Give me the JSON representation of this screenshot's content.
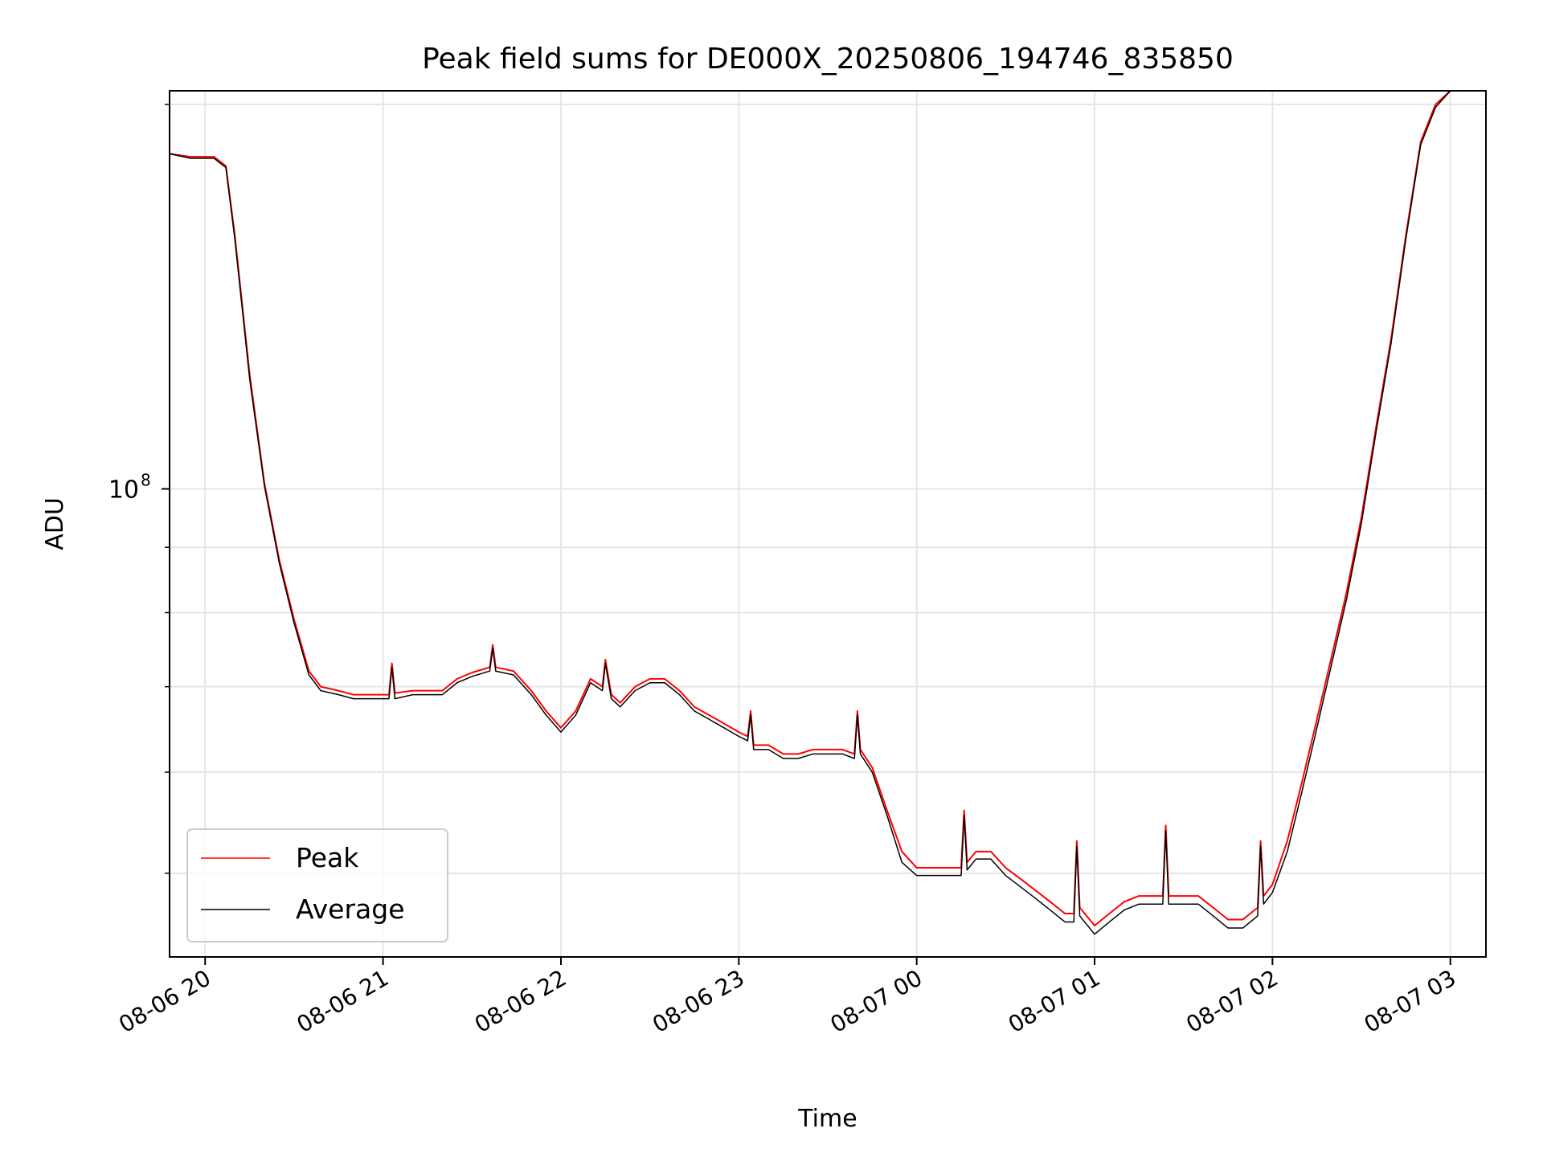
{
  "chart_data": {
    "type": "line",
    "title": "Peak field sums for DE000X_20250806_194746_835850",
    "xlabel": "Time",
    "ylabel": "ADU",
    "yscale": "log",
    "grid": true,
    "legend_placement": "bottom-left",
    "xlim": [
      "2025-08-06 19:48",
      "2025-08-07 03:12"
    ],
    "ylim": [
      43000000,
      205000000
    ],
    "x_ticks": [
      {
        "t": "2025-08-06 20:00",
        "label": "08-06 20"
      },
      {
        "t": "2025-08-06 21:00",
        "label": "08-06 21"
      },
      {
        "t": "2025-08-06 22:00",
        "label": "08-06 22"
      },
      {
        "t": "2025-08-06 23:00",
        "label": "08-06 23"
      },
      {
        "t": "2025-08-07 00:00",
        "label": "08-07 00"
      },
      {
        "t": "2025-08-07 01:00",
        "label": "08-07 01"
      },
      {
        "t": "2025-08-07 02:00",
        "label": "08-07 02"
      },
      {
        "t": "2025-08-07 03:00",
        "label": "08-07 03"
      }
    ],
    "y_major_ticks": [
      {
        "value": 100000000,
        "label_base": "10",
        "label_exp": "8"
      }
    ],
    "y_minor_ticks": [
      50000000,
      60000000,
      70000000,
      80000000,
      90000000,
      200000000
    ],
    "series": [
      {
        "name": "Peak",
        "color": "#ff0000",
        "x": [
          "2025-08-06 19:48",
          "2025-08-06 19:55",
          "2025-08-06 20:03",
          "2025-08-06 20:07",
          "2025-08-06 20:10",
          "2025-08-06 20:15",
          "2025-08-06 20:20",
          "2025-08-06 20:25",
          "2025-08-06 20:30",
          "2025-08-06 20:35",
          "2025-08-06 20:39",
          "2025-08-06 20:45",
          "2025-08-06 20:50",
          "2025-08-06 20:55",
          "2025-08-06 21:02",
          "2025-08-06 21:03",
          "2025-08-06 21:04",
          "2025-08-06 21:10",
          "2025-08-06 21:20",
          "2025-08-06 21:25",
          "2025-08-06 21:30",
          "2025-08-06 21:36",
          "2025-08-06 21:37",
          "2025-08-06 21:38",
          "2025-08-06 21:44",
          "2025-08-06 21:50",
          "2025-08-06 21:55",
          "2025-08-06 22:00",
          "2025-08-06 22:05",
          "2025-08-06 22:10",
          "2025-08-06 22:14",
          "2025-08-06 22:15",
          "2025-08-06 22:17",
          "2025-08-06 22:20",
          "2025-08-06 22:25",
          "2025-08-06 22:30",
          "2025-08-06 22:35",
          "2025-08-06 22:40",
          "2025-08-06 22:45",
          "2025-08-06 22:50",
          "2025-08-06 22:55",
          "2025-08-06 23:00",
          "2025-08-06 23:03",
          "2025-08-06 23:04",
          "2025-08-06 23:05",
          "2025-08-06 23:10",
          "2025-08-06 23:15",
          "2025-08-06 23:20",
          "2025-08-06 23:25",
          "2025-08-06 23:30",
          "2025-08-06 23:35",
          "2025-08-06 23:39",
          "2025-08-06 23:40",
          "2025-08-06 23:41",
          "2025-08-06 23:45",
          "2025-08-06 23:50",
          "2025-08-06 23:55",
          "2025-08-07 00:00",
          "2025-08-07 00:05",
          "2025-08-07 00:10",
          "2025-08-07 00:15",
          "2025-08-07 00:16",
          "2025-08-07 00:17",
          "2025-08-07 00:20",
          "2025-08-07 00:25",
          "2025-08-07 00:30",
          "2025-08-07 00:35",
          "2025-08-07 00:40",
          "2025-08-07 00:45",
          "2025-08-07 00:50",
          "2025-08-07 00:53",
          "2025-08-07 00:54",
          "2025-08-07 00:55",
          "2025-08-07 01:00",
          "2025-08-07 01:05",
          "2025-08-07 01:10",
          "2025-08-07 01:15",
          "2025-08-07 01:20",
          "2025-08-07 01:23",
          "2025-08-07 01:24",
          "2025-08-07 01:25",
          "2025-08-07 01:30",
          "2025-08-07 01:35",
          "2025-08-07 01:40",
          "2025-08-07 01:45",
          "2025-08-07 01:50",
          "2025-08-07 01:55",
          "2025-08-07 01:56",
          "2025-08-07 01:57",
          "2025-08-07 02:00",
          "2025-08-07 02:05",
          "2025-08-07 02:10",
          "2025-08-07 02:15",
          "2025-08-07 02:20",
          "2025-08-07 02:25",
          "2025-08-07 02:30",
          "2025-08-07 02:35",
          "2025-08-07 02:40",
          "2025-08-07 02:45",
          "2025-08-07 02:50",
          "2025-08-07 02:55",
          "2025-08-07 03:00",
          "2025-08-07 03:02"
        ],
        "values": [
          183000000,
          182000000,
          182000000,
          179000000,
          158000000,
          123000000,
          101000000,
          88000000,
          79000000,
          72000000,
          70000000,
          69500000,
          69000000,
          69000000,
          69000000,
          73000000,
          69200000,
          69500000,
          69500000,
          71000000,
          71800000,
          72500000,
          75500000,
          72500000,
          72000000,
          69500000,
          67000000,
          65000000,
          67000000,
          71000000,
          70000000,
          73500000,
          69000000,
          68000000,
          70000000,
          71000000,
          71000000,
          69500000,
          67500000,
          66500000,
          65500000,
          64500000,
          64000000,
          67000000,
          63000000,
          63000000,
          62000000,
          62000000,
          62500000,
          62500000,
          62500000,
          62000000,
          67000000,
          62500000,
          60500000,
          56000000,
          52000000,
          50500000,
          50500000,
          50500000,
          50500000,
          56000000,
          51000000,
          52000000,
          52000000,
          50500000,
          49500000,
          48500000,
          47500000,
          46500000,
          46500000,
          53000000,
          47000000,
          45500000,
          46500000,
          47500000,
          48000000,
          48000000,
          48000000,
          54500000,
          48000000,
          48000000,
          48000000,
          47000000,
          46000000,
          46000000,
          47000000,
          53000000,
          48000000,
          49000000,
          53000000,
          59000000,
          66000000,
          74000000,
          83000000,
          95000000,
          112000000,
          131000000,
          158000000,
          187000000,
          200000000,
          205000000,
          205000000
        ]
      },
      {
        "name": "Average",
        "color": "#000000",
        "x": [
          "2025-08-06 19:48",
          "2025-08-06 19:55",
          "2025-08-06 20:03",
          "2025-08-06 20:07",
          "2025-08-06 20:10",
          "2025-08-06 20:15",
          "2025-08-06 20:20",
          "2025-08-06 20:25",
          "2025-08-06 20:30",
          "2025-08-06 20:35",
          "2025-08-06 20:39",
          "2025-08-06 20:45",
          "2025-08-06 20:50",
          "2025-08-06 20:55",
          "2025-08-06 21:02",
          "2025-08-06 21:03",
          "2025-08-06 21:04",
          "2025-08-06 21:10",
          "2025-08-06 21:20",
          "2025-08-06 21:25",
          "2025-08-06 21:30",
          "2025-08-06 21:36",
          "2025-08-06 21:37",
          "2025-08-06 21:38",
          "2025-08-06 21:44",
          "2025-08-06 21:50",
          "2025-08-06 21:55",
          "2025-08-06 22:00",
          "2025-08-06 22:05",
          "2025-08-06 22:10",
          "2025-08-06 22:14",
          "2025-08-06 22:15",
          "2025-08-06 22:17",
          "2025-08-06 22:20",
          "2025-08-06 22:25",
          "2025-08-06 22:30",
          "2025-08-06 22:35",
          "2025-08-06 22:40",
          "2025-08-06 22:45",
          "2025-08-06 22:50",
          "2025-08-06 22:55",
          "2025-08-06 23:00",
          "2025-08-06 23:03",
          "2025-08-06 23:04",
          "2025-08-06 23:05",
          "2025-08-06 23:10",
          "2025-08-06 23:15",
          "2025-08-06 23:20",
          "2025-08-06 23:25",
          "2025-08-06 23:30",
          "2025-08-06 23:35",
          "2025-08-06 23:39",
          "2025-08-06 23:40",
          "2025-08-06 23:41",
          "2025-08-06 23:45",
          "2025-08-06 23:50",
          "2025-08-06 23:55",
          "2025-08-07 00:00",
          "2025-08-07 00:05",
          "2025-08-07 00:10",
          "2025-08-07 00:15",
          "2025-08-07 00:16",
          "2025-08-07 00:17",
          "2025-08-07 00:20",
          "2025-08-07 00:25",
          "2025-08-07 00:30",
          "2025-08-07 00:35",
          "2025-08-07 00:40",
          "2025-08-07 00:45",
          "2025-08-07 00:50",
          "2025-08-07 00:53",
          "2025-08-07 00:54",
          "2025-08-07 00:55",
          "2025-08-07 01:00",
          "2025-08-07 01:05",
          "2025-08-07 01:10",
          "2025-08-07 01:15",
          "2025-08-07 01:20",
          "2025-08-07 01:23",
          "2025-08-07 01:24",
          "2025-08-07 01:25",
          "2025-08-07 01:30",
          "2025-08-07 01:35",
          "2025-08-07 01:40",
          "2025-08-07 01:45",
          "2025-08-07 01:50",
          "2025-08-07 01:55",
          "2025-08-07 01:56",
          "2025-08-07 01:57",
          "2025-08-07 02:00",
          "2025-08-07 02:05",
          "2025-08-07 02:10",
          "2025-08-07 02:15",
          "2025-08-07 02:20",
          "2025-08-07 02:25",
          "2025-08-07 02:30",
          "2025-08-07 02:35",
          "2025-08-07 02:40",
          "2025-08-07 02:45",
          "2025-08-07 02:50",
          "2025-08-07 02:55",
          "2025-08-07 03:00",
          "2025-08-07 03:02"
        ],
        "values": [
          183000000,
          181500000,
          181500000,
          178500000,
          157000000,
          122000000,
          100500000,
          87500000,
          78500000,
          71500000,
          69500000,
          69000000,
          68500000,
          68500000,
          68500000,
          72500000,
          68500000,
          69000000,
          69000000,
          70500000,
          71300000,
          72000000,
          75000000,
          72000000,
          71500000,
          69000000,
          66500000,
          64500000,
          66500000,
          70500000,
          69500000,
          73000000,
          68500000,
          67500000,
          69500000,
          70500000,
          70500000,
          69000000,
          67000000,
          66000000,
          65000000,
          64000000,
          63500000,
          66500000,
          62500000,
          62500000,
          61500000,
          61500000,
          62000000,
          62000000,
          62000000,
          61500000,
          66500000,
          62000000,
          60000000,
          55500000,
          51000000,
          49800000,
          49800000,
          49800000,
          49800000,
          55500000,
          50300000,
          51300000,
          51300000,
          49800000,
          48800000,
          47800000,
          46800000,
          45800000,
          45800000,
          52500000,
          46300000,
          44800000,
          45800000,
          46800000,
          47300000,
          47300000,
          47300000,
          54000000,
          47300000,
          47300000,
          47300000,
          46300000,
          45300000,
          45300000,
          46300000,
          52500000,
          47300000,
          48300000,
          52000000,
          58000000,
          65000000,
          73000000,
          82000000,
          94000000,
          111000000,
          130000000,
          157000000,
          186000000,
          199000000,
          205000000,
          205000000
        ]
      }
    ]
  }
}
